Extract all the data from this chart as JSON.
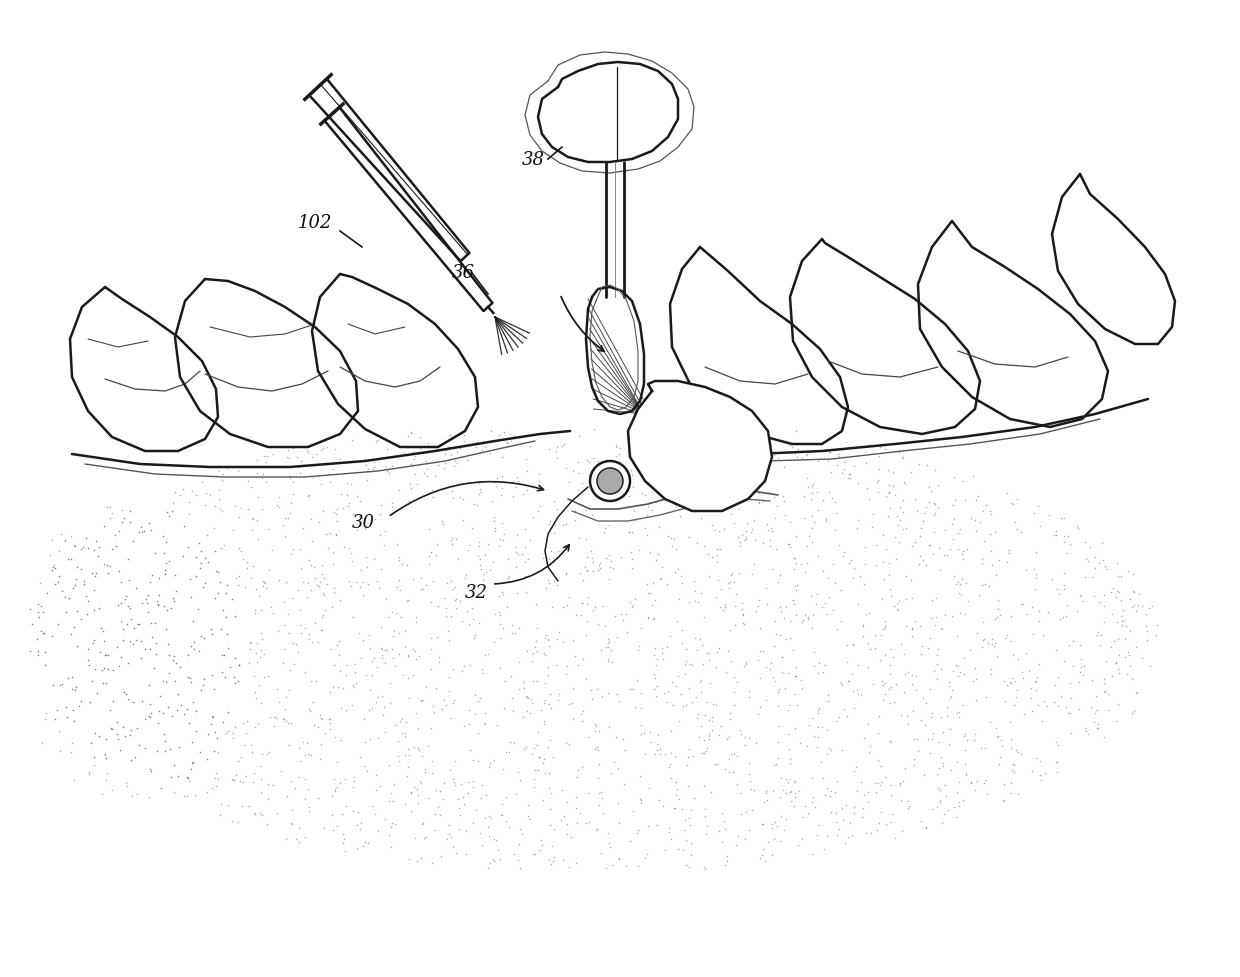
{
  "background_color": "#ffffff",
  "line_color": "#1a1a1a",
  "dot_color": "#666666",
  "label_color": "#111111",
  "fig_width": 12.4,
  "fig_height": 9.78,
  "dpi": 100
}
